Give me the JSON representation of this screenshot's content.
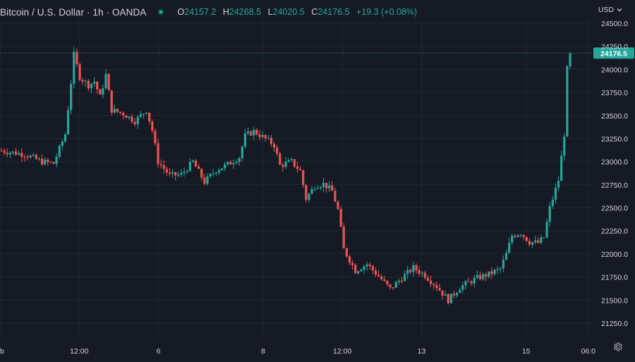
{
  "header": {
    "title": "Bitcoin / U.S. Dollar · 1h · OANDA",
    "status_icon": "live-dot-icon",
    "ohlc": {
      "o_label": "O",
      "o_value": "24157.2",
      "h_label": "H",
      "h_value": "24268.5",
      "l_label": "L",
      "l_value": "24020.5",
      "c_label": "C",
      "c_value": "24176.5",
      "change": "+19.3 (+0.08%)"
    }
  },
  "currency": {
    "label": "USD",
    "icon": "chevron-down-icon"
  },
  "settings_icon": "gear-icon",
  "colors": {
    "background": "#161a25",
    "grid": "#232735",
    "up": "#26a69a",
    "down": "#ef5350",
    "text": "#d1d4dc",
    "price_label_bg": "#26a69a"
  },
  "chart_data": {
    "type": "candlestick",
    "symbol": "BTCUSD",
    "timeframe": "1h",
    "ylim": [
      21100,
      24560
    ],
    "y_ticks": [
      21250,
      21500,
      21750,
      22000,
      22250,
      22500,
      22750,
      23000,
      23250,
      23500,
      23750,
      24000,
      24250,
      24500
    ],
    "y_tick_labels": [
      "21250.0",
      "21500.0",
      "21750.0",
      "22000.0",
      "22250.0",
      "22500.0",
      "22750.0",
      "23000.0",
      "23250.0",
      "23500.0",
      "23750.0",
      "24000.0",
      "24250.0",
      "24500.0"
    ],
    "x_tick_labels": [
      "eb",
      "12:00",
      "6",
      "8",
      "12:00",
      "13",
      "15",
      "06:0"
    ],
    "x_tick_fractions": [
      0.0,
      0.134,
      0.268,
      0.445,
      0.579,
      0.713,
      0.89,
      0.995
    ],
    "last_price": 24176.5,
    "last_price_label": "24176.5",
    "grid": true,
    "trend_points": [
      [
        0,
        23120
      ],
      [
        8,
        23080
      ],
      [
        14,
        23000
      ],
      [
        18,
        22980
      ],
      [
        22,
        23300
      ],
      [
        24,
        23860
      ],
      [
        25,
        24160
      ],
      [
        27,
        23920
      ],
      [
        30,
        23830
      ],
      [
        32,
        23870
      ],
      [
        34,
        23700
      ],
      [
        36,
        23940
      ],
      [
        38,
        23560
      ],
      [
        42,
        23520
      ],
      [
        46,
        23440
      ],
      [
        50,
        23560
      ],
      [
        52,
        23340
      ],
      [
        54,
        23000
      ],
      [
        58,
        22850
      ],
      [
        62,
        22860
      ],
      [
        66,
        23000
      ],
      [
        70,
        22780
      ],
      [
        74,
        22910
      ],
      [
        78,
        22970
      ],
      [
        82,
        23050
      ],
      [
        84,
        23280
      ],
      [
        87,
        23330
      ],
      [
        91,
        23250
      ],
      [
        94,
        23180
      ],
      [
        96,
        22960
      ],
      [
        100,
        23000
      ],
      [
        103,
        22900
      ],
      [
        105,
        22600
      ],
      [
        108,
        22740
      ],
      [
        111,
        22760
      ],
      [
        114,
        22680
      ],
      [
        116,
        22480
      ],
      [
        118,
        22050
      ],
      [
        122,
        21820
      ],
      [
        126,
        21890
      ],
      [
        130,
        21760
      ],
      [
        134,
        21620
      ],
      [
        138,
        21740
      ],
      [
        142,
        21850
      ],
      [
        146,
        21770
      ],
      [
        150,
        21650
      ],
      [
        154,
        21500
      ],
      [
        158,
        21640
      ],
      [
        161,
        21690
      ],
      [
        164,
        21740
      ],
      [
        168,
        21780
      ],
      [
        172,
        21840
      ],
      [
        174,
        22000
      ],
      [
        176,
        22200
      ],
      [
        179,
        22230
      ],
      [
        182,
        22130
      ],
      [
        185,
        22120
      ],
      [
        187,
        22180
      ],
      [
        189,
        22500
      ],
      [
        192,
        22800
      ],
      [
        194,
        23300
      ],
      [
        195,
        24000
      ],
      [
        196,
        24176.5
      ]
    ],
    "candle_count": 197,
    "up_color": "#26a69a",
    "down_color": "#ef5350"
  }
}
